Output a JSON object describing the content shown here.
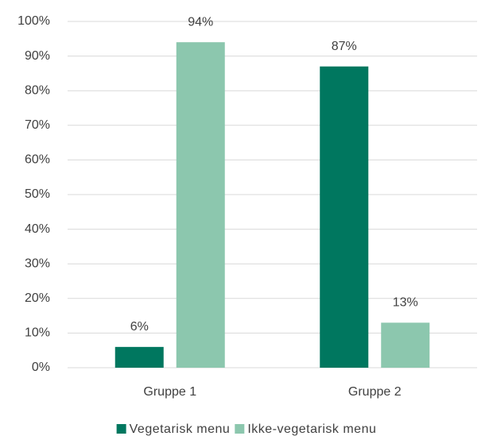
{
  "chart_data": {
    "type": "bar",
    "categories": [
      "Gruppe 1",
      "Gruppe 2"
    ],
    "series": [
      {
        "name": "Vegetarisk menu",
        "color": "#00775f",
        "values": [
          6,
          87
        ],
        "value_labels": [
          "6%",
          "87%"
        ]
      },
      {
        "name": "Ikke-vegetarisk menu",
        "color": "#8cc7ae",
        "values": [
          94,
          13
        ],
        "value_labels": [
          "94%",
          "13%"
        ]
      }
    ],
    "ylim": [
      0,
      100
    ],
    "yticks": [
      {
        "value": 0,
        "label": "0%"
      },
      {
        "value": 10,
        "label": "10%"
      },
      {
        "value": 20,
        "label": "20%"
      },
      {
        "value": 30,
        "label": "30%"
      },
      {
        "value": 40,
        "label": "40%"
      },
      {
        "value": 50,
        "label": "50%"
      },
      {
        "value": 60,
        "label": "60%"
      },
      {
        "value": 70,
        "label": "70%"
      },
      {
        "value": 80,
        "label": "80%"
      },
      {
        "value": 90,
        "label": "90%"
      },
      {
        "value": 100,
        "label": "100%"
      }
    ],
    "grid": true,
    "legend": "bottom"
  }
}
